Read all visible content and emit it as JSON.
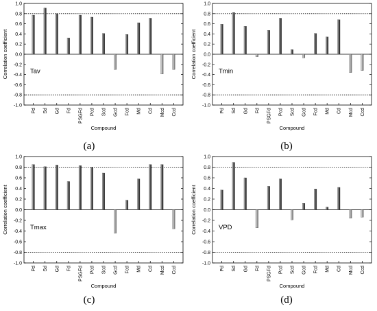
{
  "chart_data": [
    {
      "type": "bar",
      "panel_label": "(a)",
      "annotation": "Tav",
      "categories": [
        "Pd",
        "Sd",
        "Gd",
        "Fd",
        "PSGFd",
        "Pcd",
        "Scd",
        "Gcd",
        "Fcd",
        "Md",
        "Cd",
        "Mcd",
        "Ccd"
      ],
      "values": [
        0.77,
        0.91,
        0.8,
        0.32,
        0.77,
        0.73,
        0.41,
        -0.3,
        0.39,
        0.62,
        0.71,
        -0.39,
        -0.3
      ],
      "xlabel": "Compound",
      "ylabel": "Correlation coefficient",
      "ylim": [
        -1.0,
        1.0
      ],
      "yticks": [
        "1.0",
        "0.8",
        "0.6",
        "0.4",
        "0.2",
        "0.0",
        "-0.2",
        "-0.4",
        "-0.6",
        "-0.8",
        "-1.0"
      ],
      "reference_lines": [
        0.8,
        -0.8
      ]
    },
    {
      "type": "bar",
      "panel_label": "(b)",
      "annotation": "Tmin",
      "categories": [
        "Pd",
        "Sd",
        "Gd",
        "Fd",
        "PSGFd",
        "Pcd",
        "Scd",
        "Gcd",
        "Fcd",
        "Md",
        "Cd",
        "Mcd",
        "Ccd"
      ],
      "values": [
        0.59,
        0.82,
        0.55,
        -0.05,
        0.47,
        0.71,
        0.09,
        -0.07,
        0.41,
        0.34,
        0.68,
        -0.36,
        -0.32
      ],
      "xlabel": "Compound",
      "ylabel": "Correlation coefficient",
      "ylim": [
        -1.0,
        1.0
      ],
      "yticks": [
        "1.0",
        "0.8",
        "0.6",
        "0.4",
        "0.2",
        "0.0",
        "-0.2",
        "-0.4",
        "-0.6",
        "-0.8",
        "-1.0"
      ],
      "reference_lines": [
        0.8,
        -0.8
      ]
    },
    {
      "type": "bar",
      "panel_label": "(c)",
      "annotation": "Tmax",
      "categories": [
        "Pd",
        "Sd",
        "Gd",
        "Fd",
        "PSGFd",
        "Pcd",
        "Scd",
        "Gcd",
        "Fcd",
        "Md",
        "Cd",
        "Mcd",
        "Ccd"
      ],
      "values": [
        0.85,
        0.81,
        0.84,
        0.53,
        0.83,
        0.8,
        0.69,
        -0.44,
        0.18,
        0.58,
        0.85,
        0.85,
        -0.36
      ],
      "xlabel": "Compound",
      "ylabel": "Correlation coefficient",
      "ylim": [
        -1.0,
        1.0
      ],
      "yticks": [
        "1.0",
        "0.8",
        "0.6",
        "0.4",
        "0.2",
        "0.0",
        "-0.2",
        "-0.4",
        "-0.6",
        "-0.8",
        "-1.0"
      ],
      "reference_lines": [
        0.8,
        -0.8
      ]
    },
    {
      "type": "bar",
      "panel_label": "(d)",
      "annotation": "VPD",
      "categories": [
        "Pd",
        "Sd",
        "Gd",
        "Fd",
        "PSGFd",
        "Pcd",
        "Scd",
        "Gcd",
        "Fcd",
        "Md",
        "Cd",
        "Mcd",
        "Ccd"
      ],
      "values": [
        0.37,
        0.89,
        0.6,
        -0.34,
        0.44,
        0.58,
        -0.19,
        0.12,
        0.39,
        0.05,
        0.42,
        -0.16,
        -0.14
      ],
      "xlabel": "Compound",
      "ylabel": "Correlation coefficient",
      "ylim": [
        -1.0,
        1.0
      ],
      "yticks": [
        "1.0",
        "0.8",
        "0.6",
        "0.4",
        "0.2",
        "0.0",
        "-0.2",
        "-0.4",
        "-0.6",
        "-0.8",
        "-1.0"
      ],
      "reference_lines": [
        0.8,
        -0.8
      ]
    }
  ]
}
